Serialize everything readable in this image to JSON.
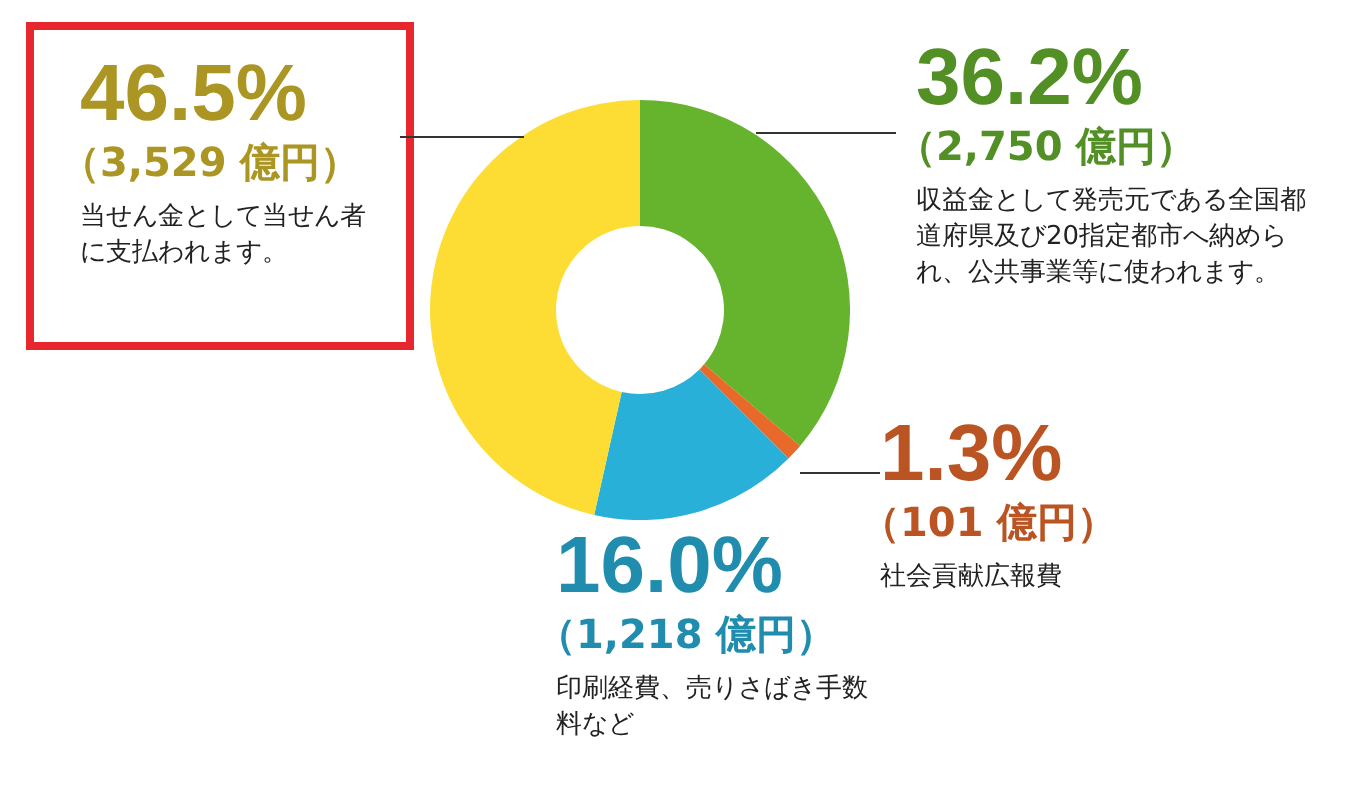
{
  "chart_data": {
    "type": "donut",
    "categories": [
      null,
      null,
      null,
      null
    ],
    "values": [
      36.2,
      1.3,
      16.0,
      46.5
    ],
    "colors": [
      "#66b32e",
      "#e8692a",
      "#29b0d9",
      "#fddd33"
    ],
    "value_labels": [
      "36.2%",
      "1.3%",
      "16.0%",
      "46.5%"
    ],
    "annotations": [
      "（2,750 億円）",
      "収益金として発売元である全国都道府県及び20指定都市へ納められ、公共事業等に使われます。",
      "（101 億円）",
      "社会貢献広報費",
      "（1,218 億円）",
      "印刷経費、売りさばき手数料など",
      "（3,529 億円）",
      "当せん金として当せん者に支払われます。"
    ],
    "legend": false
  }
}
